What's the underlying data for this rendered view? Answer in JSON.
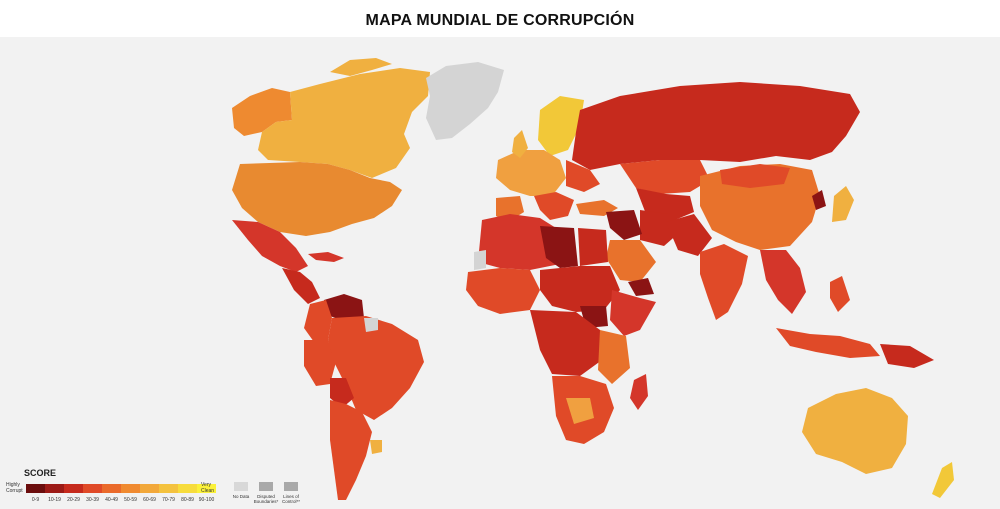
{
  "title": "MAPA MUNDIAL DE CORRUPCIÓN",
  "colors": {
    "ocean": "#f2f2f2",
    "no_data": "#d4d4d4",
    "very_low": "#8b1414",
    "low": "#b82418",
    "mid_low": "#d4362a",
    "mid": "#e04a28",
    "mid_high": "#e8722c",
    "high": "#f0a040",
    "higher": "#f0b040",
    "clean": "#f2c838"
  },
  "legend": {
    "title": "SCORE",
    "left_label": "Highly Corrupt",
    "right_label": "Very Clean",
    "scale": [
      {
        "label": "0-9",
        "color": "#6b0d0d"
      },
      {
        "label": "10-19",
        "color": "#9c1a16"
      },
      {
        "label": "20-29",
        "color": "#c62a1d"
      },
      {
        "label": "30-39",
        "color": "#e04a28"
      },
      {
        "label": "40-49",
        "color": "#ea6a2b"
      },
      {
        "label": "50-59",
        "color": "#f08a30"
      },
      {
        "label": "60-69",
        "color": "#f2a83a"
      },
      {
        "label": "70-79",
        "color": "#f4c23e"
      },
      {
        "label": "80-89",
        "color": "#f7dc3c"
      },
      {
        "label": "90-100",
        "color": "#fbf13a"
      }
    ],
    "extras": [
      {
        "label": "No Data"
      },
      {
        "label": "Disputed Boundaries*"
      },
      {
        "label": "Lines of Control**"
      }
    ]
  }
}
